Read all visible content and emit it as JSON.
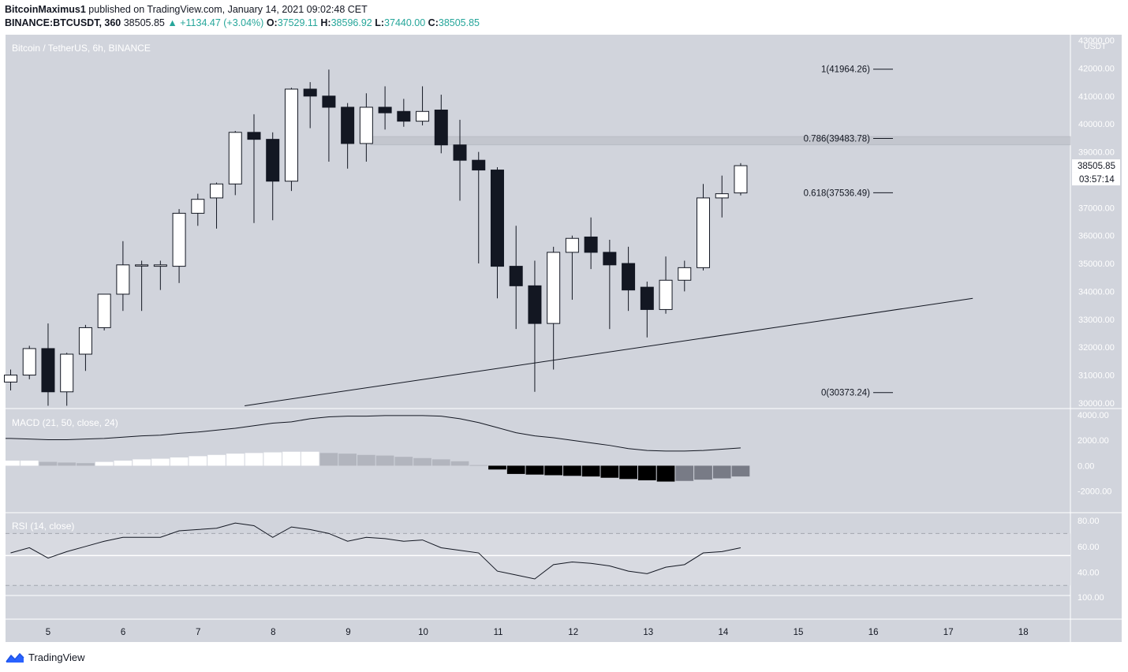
{
  "header": {
    "author": "BitcoinMaximus1",
    "published_on": "published on TradingView.com, January 14, 2021 09:02:48 CET",
    "symbol": "BINANCE:BTCUSDT, 360",
    "last": "38505.85",
    "change": "+1134.47 (+3.04%)",
    "o_label": "O:",
    "o": "37529.11",
    "h_label": "H:",
    "h": "38596.92",
    "l_label": "L:",
    "l": "37440.00",
    "c_label": "C:",
    "c": "38505.85"
  },
  "footer": {
    "brand": "TradingView"
  },
  "colors": {
    "background": "#d1d4dc",
    "candle_up": "#ffffff",
    "candle_down": "#131722",
    "up_text": "#26a69a",
    "macd_hist_light": "#b2b5be",
    "macd_hist_dark": "#000000",
    "macd_hist_grey": "#787b86"
  },
  "chart_data": [
    {
      "type": "candlestick",
      "title": "Bitcoin / TetherUS, 6h, BINANCE",
      "y_unit": "USDT",
      "ylim": [
        29800,
        43200
      ],
      "y_ticks": [
        "30000.00",
        "31000.00",
        "32000.00",
        "33000.00",
        "34000.00",
        "35000.00",
        "36000.00",
        "37000.00",
        "38000.00",
        "39000.00",
        "40000.00",
        "41000.00",
        "42000.00",
        "43000.00"
      ],
      "x_ticks": [
        "5",
        "6",
        "7",
        "8",
        "9",
        "10",
        "11",
        "12",
        "13",
        "14",
        "15",
        "16",
        "17",
        "18"
      ],
      "price_label": "38505.85",
      "countdown_label": "03:57:14",
      "candles": [
        {
          "o": 30750,
          "h": 31200,
          "l": 30450,
          "c": 31000
        },
        {
          "o": 31000,
          "h": 32050,
          "l": 30850,
          "c": 31950
        },
        {
          "o": 31950,
          "h": 32850,
          "l": 29900,
          "c": 30400
        },
        {
          "o": 30400,
          "h": 31800,
          "l": 29900,
          "c": 31750
        },
        {
          "o": 31750,
          "h": 32800,
          "l": 31150,
          "c": 32700
        },
        {
          "o": 32700,
          "h": 33900,
          "l": 32600,
          "c": 33900
        },
        {
          "o": 33900,
          "h": 35800,
          "l": 33300,
          "c": 34950
        },
        {
          "o": 34950,
          "h": 35100,
          "l": 33300,
          "c": 34950
        },
        {
          "o": 34900,
          "h": 35100,
          "l": 34050,
          "c": 34950
        },
        {
          "o": 34900,
          "h": 36950,
          "l": 34300,
          "c": 36800
        },
        {
          "o": 36800,
          "h": 37500,
          "l": 36350,
          "c": 37300
        },
        {
          "o": 37350,
          "h": 37900,
          "l": 36250,
          "c": 37850
        },
        {
          "o": 37850,
          "h": 39750,
          "l": 37450,
          "c": 39700
        },
        {
          "o": 39700,
          "h": 40350,
          "l": 36450,
          "c": 39450
        },
        {
          "o": 39450,
          "h": 39700,
          "l": 36550,
          "c": 37950
        },
        {
          "o": 37950,
          "h": 41300,
          "l": 37600,
          "c": 41250
        },
        {
          "o": 41250,
          "h": 41500,
          "l": 39850,
          "c": 41000
        },
        {
          "o": 41000,
          "h": 41950,
          "l": 38650,
          "c": 40600
        },
        {
          "o": 40600,
          "h": 40750,
          "l": 38400,
          "c": 39300
        },
        {
          "o": 39300,
          "h": 41100,
          "l": 38650,
          "c": 40600
        },
        {
          "o": 40600,
          "h": 41350,
          "l": 39800,
          "c": 40400
        },
        {
          "o": 40450,
          "h": 40900,
          "l": 39900,
          "c": 40100
        },
        {
          "o": 40100,
          "h": 41350,
          "l": 39950,
          "c": 40450
        },
        {
          "o": 40500,
          "h": 41050,
          "l": 38950,
          "c": 39250
        },
        {
          "o": 39250,
          "h": 40150,
          "l": 37250,
          "c": 38700
        },
        {
          "o": 38700,
          "h": 39000,
          "l": 35000,
          "c": 38350
        },
        {
          "o": 38350,
          "h": 38450,
          "l": 33750,
          "c": 34900
        },
        {
          "o": 34900,
          "h": 36350,
          "l": 32650,
          "c": 34200
        },
        {
          "o": 34200,
          "h": 35100,
          "l": 30400,
          "c": 32850
        },
        {
          "o": 32850,
          "h": 35600,
          "l": 31200,
          "c": 35400
        },
        {
          "o": 35400,
          "h": 36000,
          "l": 33700,
          "c": 35900
        },
        {
          "o": 35950,
          "h": 36650,
          "l": 34800,
          "c": 35400
        },
        {
          "o": 35400,
          "h": 35850,
          "l": 32650,
          "c": 34950
        },
        {
          "o": 35000,
          "h": 35600,
          "l": 33300,
          "c": 34050
        },
        {
          "o": 34150,
          "h": 34350,
          "l": 32350,
          "c": 33350
        },
        {
          "o": 33350,
          "h": 35250,
          "l": 33200,
          "c": 34400
        },
        {
          "o": 34400,
          "h": 35100,
          "l": 34000,
          "c": 34850
        },
        {
          "o": 34850,
          "h": 37850,
          "l": 34750,
          "c": 37350
        },
        {
          "o": 37350,
          "h": 38150,
          "l": 36650,
          "c": 37500
        },
        {
          "o": 37529.11,
          "h": 38596.92,
          "l": 37440,
          "c": 38505.85
        }
      ],
      "fib_levels": [
        {
          "label": "1(41964.26)",
          "value": 41964.26
        },
        {
          "label": "0.786(39483.78)",
          "value": 39483.78
        },
        {
          "label": "0.618(37536.49)",
          "value": 37536.49
        },
        {
          "label": "0(30373.24)",
          "value": 30373.24
        }
      ],
      "shaded_zone": [
        39250,
        39550
      ],
      "trendline": [
        {
          "x": 12.5,
          "y": 29900
        },
        {
          "x": 51.4,
          "y": 33750
        }
      ]
    },
    {
      "type": "bar",
      "title": "MACD (21, 50, close, 24)",
      "ylim": [
        -3700,
        4500
      ],
      "y_ticks": [
        "4000.00",
        "2000.00",
        "0.00",
        "-2000.00"
      ],
      "macd_line": [
        2150,
        2100,
        2050,
        2050,
        2100,
        2150,
        2250,
        2350,
        2400,
        2550,
        2650,
        2800,
        2950,
        3150,
        3350,
        3450,
        3700,
        3850,
        3900,
        3900,
        3950,
        3950,
        3950,
        3900,
        3700,
        3400,
        3000,
        2600,
        2350,
        2200,
        2000,
        1800,
        1600,
        1350,
        1200,
        1150,
        1150,
        1200,
        1300,
        1400
      ],
      "histogram": [
        400,
        400,
        300,
        250,
        200,
        300,
        400,
        500,
        550,
        650,
        750,
        850,
        950,
        1000,
        1050,
        1100,
        1100,
        1000,
        950,
        850,
        800,
        700,
        600,
        500,
        350,
        50,
        -300,
        -650,
        -700,
        -750,
        -800,
        -850,
        -950,
        -1050,
        -1150,
        -1250,
        -1200,
        -1100,
        -1000,
        -850
      ]
    },
    {
      "type": "line",
      "title": "RSI (14, close)",
      "ylim": [
        4,
        86
      ],
      "y_ticks": [
        "80.00",
        "60.00",
        "40.00",
        "100.00"
      ],
      "bands": [
        70,
        30
      ],
      "midline": 53,
      "values": [
        55,
        59,
        51,
        56,
        60,
        64,
        67,
        67,
        67,
        72,
        73,
        74,
        78,
        76,
        67,
        75,
        73,
        70,
        64,
        67,
        66,
        64,
        65,
        59,
        57,
        55,
        41,
        38,
        35,
        46,
        48,
        47,
        45,
        41,
        39,
        44,
        46,
        55,
        56,
        59
      ]
    }
  ]
}
